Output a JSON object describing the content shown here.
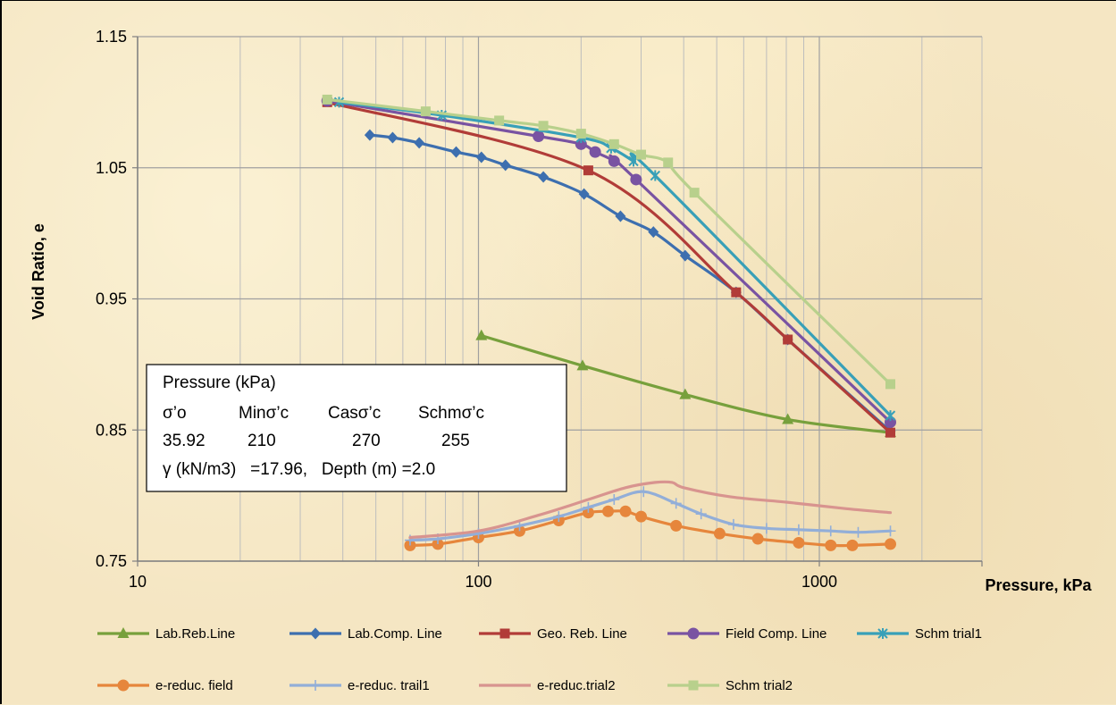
{
  "chart_data": {
    "type": "line",
    "xscale": "log",
    "xlim": [
      10,
      3000
    ],
    "ylim": [
      0.75,
      1.15
    ],
    "x_ticks": [
      "10",
      "100",
      "1000"
    ],
    "y_ticks": [
      "1.15",
      "1.05",
      "0.95",
      "0.85",
      "0.75"
    ],
    "xlabel": "Pressure, kPa",
    "ylabel": "Void Ratio, e",
    "grid": true,
    "legend_position": "bottom",
    "annotation": {
      "line1": "Pressure (kPa)",
      "h1": "σ’o",
      "h2": "Minσ’c",
      "h3": "Casσ’c",
      "h4": "Schmσ’c",
      "v1": "35.92",
      "v2": "210",
      "v3": "270",
      "v4": "255",
      "line4": "γ (kN/m3)   =17.96,   Depth (m) =2.0"
    },
    "series": [
      {
        "name": "Lab.Reb.Line",
        "color": "#77a03c",
        "marker": "triangle",
        "points": [
          [
            102,
            0.922
          ],
          [
            202,
            0.899
          ],
          [
            404,
            0.877
          ],
          [
            808,
            0.858
          ],
          [
            1616,
            0.848
          ]
        ]
      },
      {
        "name": "Lab.Comp. Line",
        "color": "#3d6faf",
        "marker": "diamond",
        "points": [
          [
            48,
            1.075
          ],
          [
            56,
            1.073
          ],
          [
            67,
            1.069
          ],
          [
            86,
            1.062
          ],
          [
            102,
            1.058
          ],
          [
            120,
            1.052
          ],
          [
            155,
            1.043
          ],
          [
            204,
            1.03
          ],
          [
            261,
            1.013
          ],
          [
            326,
            1.001
          ],
          [
            404,
            0.983
          ],
          [
            570,
            0.955
          ],
          [
            808,
            0.919
          ],
          [
            1616,
            0.849
          ]
        ]
      },
      {
        "name": "Geo. Reb. Line",
        "color": "#b13c38",
        "marker": "square",
        "points": [
          [
            36,
            1.1
          ],
          [
            210,
            1.048
          ],
          [
            570,
            0.955
          ],
          [
            808,
            0.919
          ],
          [
            1616,
            0.848
          ]
        ]
      },
      {
        "name": "Field Comp. Line",
        "color": "#7953a2",
        "marker": "circle",
        "points": [
          [
            36,
            1.101
          ],
          [
            150,
            1.074
          ],
          [
            200,
            1.068
          ],
          [
            220,
            1.062
          ],
          [
            250,
            1.055
          ],
          [
            290,
            1.041
          ],
          [
            1616,
            0.856
          ]
        ]
      },
      {
        "name": "Schm trial1",
        "color": "#38a0b8",
        "marker": "star",
        "points": [
          [
            39,
            1.1
          ],
          [
            78,
            1.09
          ],
          [
            200,
            1.073
          ],
          [
            245,
            1.065
          ],
          [
            285,
            1.055
          ],
          [
            330,
            1.044
          ],
          [
            1616,
            0.861
          ]
        ]
      },
      {
        "name": "e-reduc. field",
        "color": "#e6863c",
        "marker": "circle",
        "points": [
          [
            63,
            0.762
          ],
          [
            76,
            0.763
          ],
          [
            100,
            0.768
          ],
          [
            132,
            0.773
          ],
          [
            172,
            0.781
          ],
          [
            210,
            0.787
          ],
          [
            240,
            0.788
          ],
          [
            270,
            0.788
          ],
          [
            300,
            0.784
          ],
          [
            380,
            0.777
          ],
          [
            510,
            0.771
          ],
          [
            660,
            0.767
          ],
          [
            870,
            0.764
          ],
          [
            1080,
            0.762
          ],
          [
            1250,
            0.762
          ],
          [
            1616,
            0.763
          ]
        ]
      },
      {
        "name": "e-reduc. trail1",
        "color": "#92aed8",
        "marker": "plus",
        "points": [
          [
            63,
            0.766
          ],
          [
            76,
            0.767
          ],
          [
            100,
            0.771
          ],
          [
            132,
            0.777
          ],
          [
            172,
            0.784
          ],
          [
            210,
            0.791
          ],
          [
            250,
            0.797
          ],
          [
            305,
            0.803
          ],
          [
            380,
            0.794
          ],
          [
            450,
            0.786
          ],
          [
            560,
            0.778
          ],
          [
            700,
            0.775
          ],
          [
            870,
            0.774
          ],
          [
            1080,
            0.773
          ],
          [
            1300,
            0.772
          ],
          [
            1616,
            0.773
          ]
        ]
      },
      {
        "name": "e-reduc.trial2",
        "color": "#d8948f",
        "marker": "none",
        "points": [
          [
            63,
            0.768
          ],
          [
            100,
            0.773
          ],
          [
            150,
            0.785
          ],
          [
            210,
            0.797
          ],
          [
            270,
            0.806
          ],
          [
            330,
            0.81
          ],
          [
            370,
            0.81
          ],
          [
            400,
            0.806
          ],
          [
            550,
            0.799
          ],
          [
            800,
            0.795
          ],
          [
            1200,
            0.79
          ],
          [
            1616,
            0.787
          ]
        ]
      },
      {
        "name": "Schm trial2",
        "color": "#b8d08c",
        "marker": "square",
        "points": [
          [
            36,
            1.102
          ],
          [
            70,
            1.093
          ],
          [
            115,
            1.086
          ],
          [
            155,
            1.082
          ],
          [
            200,
            1.076
          ],
          [
            250,
            1.068
          ],
          [
            300,
            1.06
          ],
          [
            360,
            1.054
          ],
          [
            430,
            1.031
          ],
          [
            1616,
            0.885
          ]
        ]
      }
    ]
  }
}
